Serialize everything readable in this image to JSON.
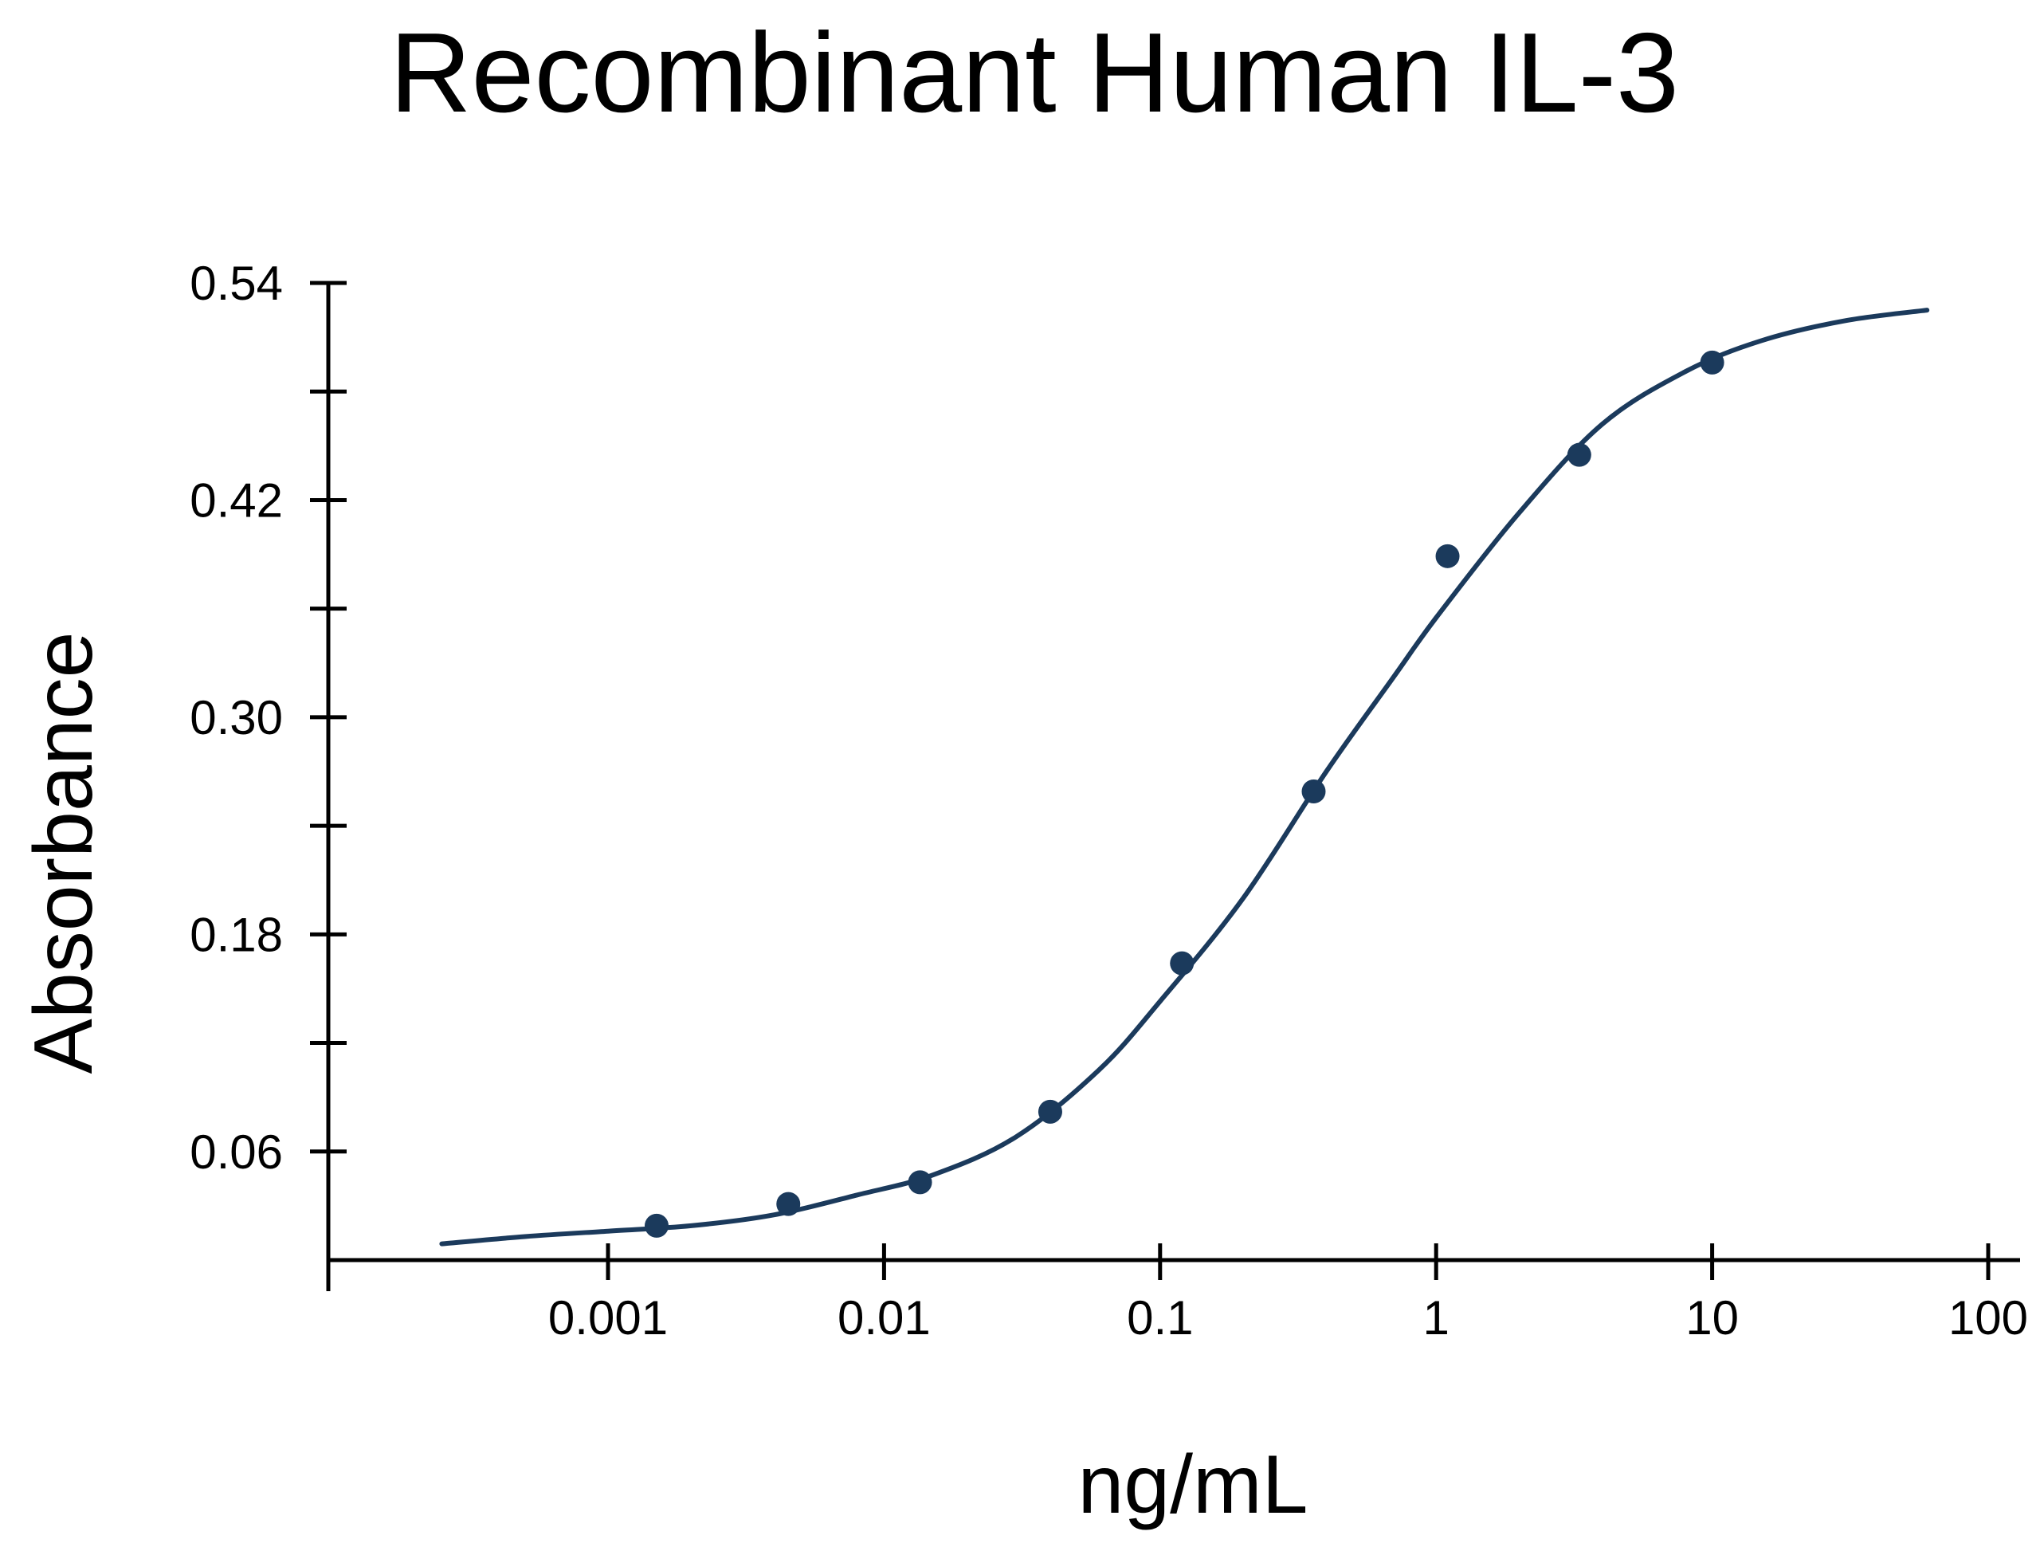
{
  "chart_data": {
    "type": "scatter",
    "title": "Recombinant Human IL-3",
    "xlabel": "ng/mL",
    "ylabel": "Absorbance",
    "x_scale": "log",
    "xlim": [
      0.0001,
      140
    ],
    "ylim": [
      0.0,
      0.54
    ],
    "x_ticks": [
      {
        "value": 0.001,
        "label": "0.001"
      },
      {
        "value": 0.01,
        "label": "0.01"
      },
      {
        "value": 0.1,
        "label": "0.1"
      },
      {
        "value": 1,
        "label": "1"
      },
      {
        "value": 10,
        "label": "10"
      },
      {
        "value": 100,
        "label": "100"
      }
    ],
    "y_ticks": [
      {
        "value": 0.06,
        "label": "0.06"
      },
      {
        "value": 0.18,
        "label": "0.18"
      },
      {
        "value": 0.3,
        "label": "0.30"
      },
      {
        "value": 0.42,
        "label": "0.42"
      },
      {
        "value": 0.54,
        "label": "0.54"
      }
    ],
    "y_minor_ticks": [
      0.12,
      0.24,
      0.36,
      0.48
    ],
    "grid": false,
    "color": "#1b3a5c",
    "points": [
      {
        "x": 0.0015,
        "y": 0.019
      },
      {
        "x": 0.0045,
        "y": 0.031
      },
      {
        "x": 0.0135,
        "y": 0.043
      },
      {
        "x": 0.04,
        "y": 0.082
      },
      {
        "x": 0.12,
        "y": 0.164
      },
      {
        "x": 0.36,
        "y": 0.259
      },
      {
        "x": 1.1,
        "y": 0.389
      },
      {
        "x": 3.3,
        "y": 0.445
      },
      {
        "x": 10,
        "y": 0.496
      }
    ],
    "fit_curve": [
      {
        "x": 0.00025,
        "y": 0.009
      },
      {
        "x": 0.0005,
        "y": 0.013
      },
      {
        "x": 0.001,
        "y": 0.016
      },
      {
        "x": 0.002,
        "y": 0.019
      },
      {
        "x": 0.004,
        "y": 0.025
      },
      {
        "x": 0.008,
        "y": 0.036
      },
      {
        "x": 0.015,
        "y": 0.047
      },
      {
        "x": 0.03,
        "y": 0.068
      },
      {
        "x": 0.06,
        "y": 0.105
      },
      {
        "x": 0.1,
        "y": 0.143
      },
      {
        "x": 0.2,
        "y": 0.2
      },
      {
        "x": 0.4,
        "y": 0.27
      },
      {
        "x": 0.7,
        "y": 0.322
      },
      {
        "x": 1,
        "y": 0.355
      },
      {
        "x": 2,
        "y": 0.413
      },
      {
        "x": 4,
        "y": 0.462
      },
      {
        "x": 8,
        "y": 0.491
      },
      {
        "x": 15,
        "y": 0.508
      },
      {
        "x": 30,
        "y": 0.519
      },
      {
        "x": 60,
        "y": 0.525
      }
    ]
  }
}
